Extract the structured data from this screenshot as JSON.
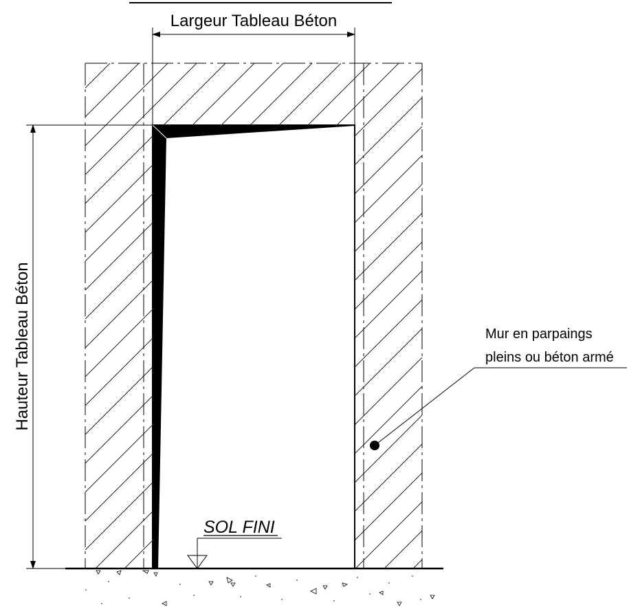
{
  "labels": {
    "width_dimension": "Largeur Tableau Béton",
    "height_dimension": "Hauteur Tableau Béton",
    "floor_level": "SOL FINI",
    "wall_note_line1": "Mur en parpaings",
    "wall_note_line2": "pleins ou béton armé"
  },
  "colors": {
    "ink": "#000000",
    "background": "#ffffff"
  }
}
